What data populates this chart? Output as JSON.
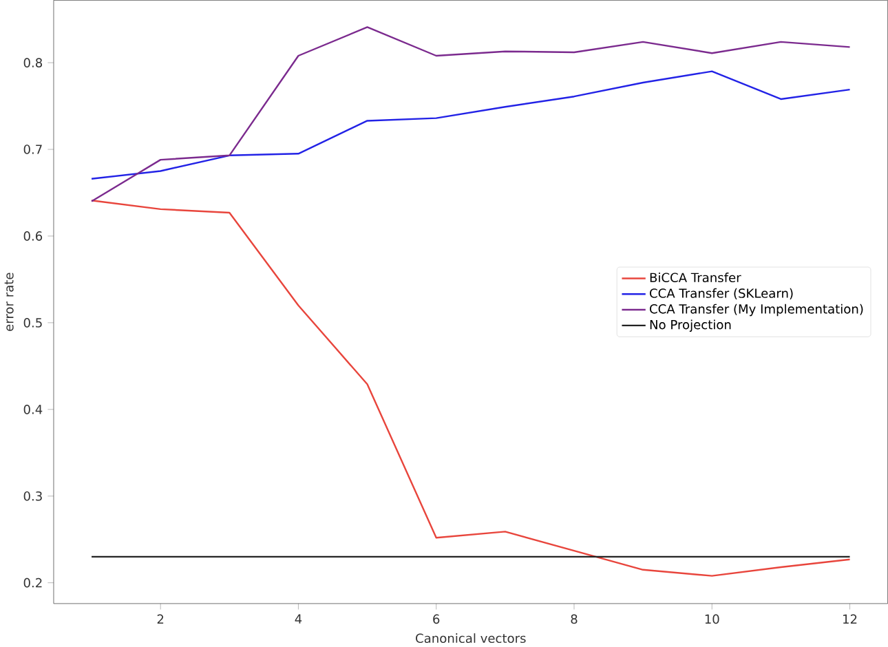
{
  "chart_data": {
    "type": "line",
    "xlabel": "Canonical vectors",
    "ylabel": "error rate",
    "x": [
      1,
      2,
      3,
      4,
      5,
      6,
      7,
      8,
      9,
      10,
      11,
      12
    ],
    "series": [
      {
        "name": "BiCCA Transfer",
        "color": "#e8453c",
        "values": [
          0.641,
          0.631,
          0.627,
          0.52,
          0.429,
          0.252,
          0.259,
          0.237,
          0.215,
          0.208,
          0.218,
          0.227
        ]
      },
      {
        "name": "CCA Transfer (SKLearn)",
        "color": "#2222e6",
        "values": [
          0.666,
          0.675,
          0.693,
          0.695,
          0.733,
          0.736,
          0.749,
          0.761,
          0.777,
          0.79,
          0.758,
          0.769
        ]
      },
      {
        "name": "CCA Transfer (My Implementation)",
        "color": "#7b2a8e",
        "values": [
          0.64,
          0.688,
          0.693,
          0.808,
          0.841,
          0.808,
          0.813,
          0.812,
          0.824,
          0.811,
          0.824,
          0.818
        ]
      },
      {
        "name": "No Projection",
        "color": "#222222",
        "values": [
          0.23,
          0.23,
          0.23,
          0.23,
          0.23,
          0.23,
          0.23,
          0.23,
          0.23,
          0.23,
          0.23,
          0.23
        ]
      }
    ],
    "xlim": [
      0.45,
      12.55
    ],
    "ylim": [
      0.176,
      0.872
    ],
    "xticks": [
      2,
      4,
      6,
      8,
      10,
      12
    ],
    "yticks": [
      0.2,
      0.3,
      0.4,
      0.5,
      0.6,
      0.7,
      0.8
    ],
    "grid": false,
    "legend": "right",
    "marker": "none",
    "line_style": "solid"
  }
}
